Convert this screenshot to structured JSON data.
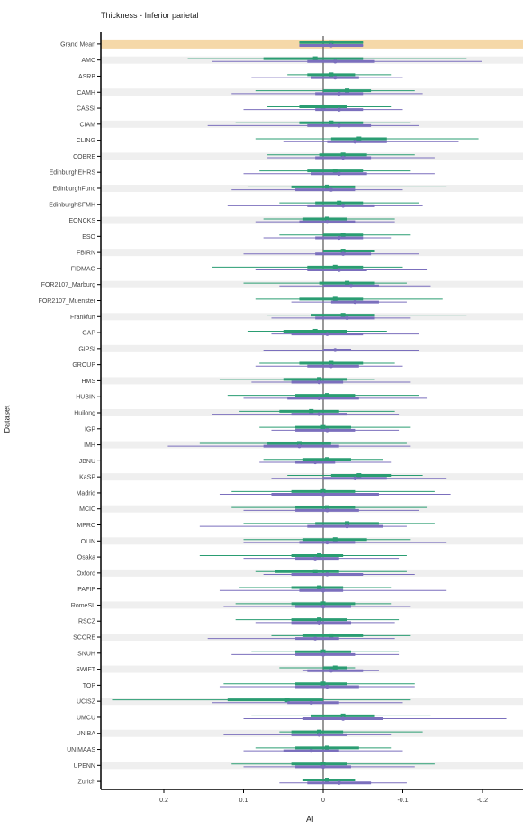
{
  "chart_data": {
    "type": "forest",
    "title": "Thickness - Inferior parietal",
    "xlabel": "AI",
    "ylabel": "Dataset",
    "x_reversed": true,
    "xlim": [
      -0.26,
      0.27
    ],
    "xticks": [
      {
        "value": 0.2,
        "label": "0.2"
      },
      {
        "value": 0.1,
        "label": "0.1"
      },
      {
        "value": 0.0,
        "label": "0"
      },
      {
        "value": -0.1,
        "label": "-0.1"
      },
      {
        "value": -0.2,
        "label": "-0.2"
      }
    ],
    "colors": {
      "series_a": "#2a9d72",
      "series_b": "#7b6fbd",
      "highlight": "#f5d8a8",
      "band": "#efefef"
    },
    "categories": [
      "Grand Mean",
      "AMC",
      "ASRB",
      "CAMH",
      "CASSI",
      "CIAM",
      "CLING",
      "COBRE",
      "EdinburghEHRS",
      "EdinburghFunc",
      "EdinburghSFMH",
      "EONCKS",
      "ESO",
      "FBIRN",
      "FIDMAG",
      "FOR2107_Marburg",
      "FOR2107_Muenster",
      "Frankfurt",
      "GAP",
      "GIPSI",
      "GROUP",
      "HMS",
      "HUBIN",
      "Huilong",
      "IGP",
      "IMH",
      "JBNU",
      "KaSP",
      "Madrid",
      "MCIC",
      "MPRC",
      "OLIN",
      "Osaka",
      "Oxford",
      "PAFIP",
      "RomeSL",
      "RSCZ",
      "SCORE",
      "SNUH",
      "SWIFT",
      "TOP",
      "UCISZ",
      "UMCU",
      "UNIBA",
      "UNIMAAS",
      "UPENN",
      "Zurich"
    ],
    "series": [
      {
        "estimate": [
          -0.01,
          0.01,
          -0.01,
          -0.03,
          0.0,
          -0.01,
          -0.045,
          -0.025,
          -0.015,
          -0.005,
          -0.02,
          -0.005,
          -0.025,
          -0.025,
          -0.015,
          -0.03,
          -0.015,
          -0.025,
          0.01,
          null,
          -0.01,
          0.005,
          -0.005,
          0.015,
          0.0,
          0.03,
          -0.005,
          -0.045,
          0.0,
          -0.005,
          -0.03,
          -0.015,
          0.005,
          0.01,
          0.005,
          0.0,
          0.005,
          -0.01,
          0.0,
          -0.015,
          0.0,
          0.045,
          -0.025,
          0.005,
          -0.005,
          0.0,
          -0.005
        ],
        "ci_inner": [
          [
            -0.05,
            0.03
          ],
          [
            -0.05,
            0.075
          ],
          [
            -0.04,
            0.02
          ],
          [
            -0.06,
            0.0
          ],
          [
            -0.03,
            0.03
          ],
          [
            -0.05,
            0.03
          ],
          [
            -0.08,
            -0.01
          ],
          [
            -0.055,
            0.005
          ],
          [
            -0.05,
            0.02
          ],
          [
            -0.04,
            0.04
          ],
          [
            -0.05,
            0.01
          ],
          [
            -0.03,
            0.025
          ],
          [
            -0.05,
            0.0
          ],
          [
            -0.065,
            0.0
          ],
          [
            -0.05,
            0.02
          ],
          [
            -0.065,
            0.005
          ],
          [
            -0.05,
            0.03
          ],
          [
            -0.065,
            0.015
          ],
          [
            -0.03,
            0.05
          ],
          null,
          [
            -0.05,
            0.03
          ],
          [
            -0.03,
            0.05
          ],
          [
            -0.04,
            0.035
          ],
          [
            -0.02,
            0.055
          ],
          [
            -0.035,
            0.035
          ],
          [
            -0.01,
            0.07
          ],
          [
            -0.035,
            0.025
          ],
          [
            -0.085,
            -0.01
          ],
          [
            -0.04,
            0.04
          ],
          [
            -0.04,
            0.035
          ],
          [
            -0.07,
            0.01
          ],
          [
            -0.055,
            0.025
          ],
          [
            -0.025,
            0.04
          ],
          [
            -0.02,
            0.06
          ],
          [
            -0.025,
            0.04
          ],
          [
            -0.04,
            0.04
          ],
          [
            -0.03,
            0.04
          ],
          [
            -0.05,
            0.025
          ],
          [
            -0.035,
            0.035
          ],
          [
            -0.03,
            0.0
          ],
          [
            -0.03,
            0.035
          ],
          [
            0.0,
            0.12
          ],
          [
            -0.065,
            0.015
          ],
          [
            -0.025,
            0.04
          ],
          [
            -0.045,
            0.035
          ],
          [
            -0.03,
            0.04
          ],
          [
            -0.04,
            0.025
          ]
        ],
        "ci_outer": [
          [
            -0.05,
            0.03
          ],
          [
            -0.18,
            0.17
          ],
          [
            -0.085,
            0.045
          ],
          [
            -0.115,
            0.085
          ],
          [
            -0.085,
            0.07
          ],
          [
            -0.11,
            0.11
          ],
          [
            -0.195,
            0.085
          ],
          [
            -0.115,
            0.07
          ],
          [
            -0.11,
            0.08
          ],
          [
            -0.155,
            0.095
          ],
          [
            -0.12,
            0.055
          ],
          [
            -0.09,
            0.075
          ],
          [
            -0.11,
            0.055
          ],
          [
            -0.115,
            0.1
          ],
          [
            -0.1,
            0.14
          ],
          [
            -0.105,
            0.1
          ],
          [
            -0.15,
            0.085
          ],
          [
            -0.18,
            0.07
          ],
          [
            -0.08,
            0.095
          ],
          null,
          [
            -0.09,
            0.08
          ],
          [
            -0.065,
            0.13
          ],
          [
            -0.12,
            0.12
          ],
          [
            -0.09,
            0.105
          ],
          [
            -0.11,
            0.08
          ],
          [
            -0.105,
            0.155
          ],
          [
            -0.075,
            0.075
          ],
          [
            -0.125,
            0.045
          ],
          [
            -0.14,
            0.115
          ],
          [
            -0.13,
            0.115
          ],
          [
            -0.14,
            0.1
          ],
          [
            -0.11,
            0.1
          ],
          [
            -0.105,
            0.155
          ],
          [
            -0.105,
            0.085
          ],
          [
            -0.085,
            0.105
          ],
          [
            -0.085,
            0.11
          ],
          [
            -0.095,
            0.11
          ],
          [
            -0.11,
            0.065
          ],
          [
            -0.095,
            0.09
          ],
          [
            -0.04,
            0.055
          ],
          [
            -0.115,
            0.125
          ],
          [
            -0.11,
            0.265
          ],
          [
            -0.135,
            0.09
          ],
          [
            -0.125,
            0.055
          ],
          [
            -0.085,
            0.085
          ],
          [
            -0.14,
            0.115
          ],
          [
            -0.085,
            0.085
          ]
        ]
      },
      {
        "estimate": [
          -0.01,
          -0.015,
          -0.015,
          -0.02,
          -0.02,
          -0.02,
          -0.04,
          -0.025,
          -0.02,
          -0.01,
          -0.025,
          -0.005,
          -0.02,
          -0.025,
          -0.02,
          -0.035,
          -0.04,
          -0.03,
          -0.005,
          -0.015,
          -0.01,
          0.005,
          0.005,
          0.005,
          -0.005,
          0.03,
          0.01,
          -0.04,
          0.0,
          -0.005,
          -0.03,
          -0.005,
          0.01,
          -0.005,
          0.0,
          0.0,
          0.005,
          0.01,
          0.0,
          -0.01,
          -0.005,
          0.015,
          -0.025,
          0.005,
          0.015,
          0.0,
          -0.02
        ],
        "ci_inner": [
          [
            -0.05,
            0.03
          ],
          [
            -0.065,
            0.02
          ],
          [
            -0.045,
            0.015
          ],
          [
            -0.05,
            0.01
          ],
          [
            -0.05,
            0.01
          ],
          [
            -0.06,
            0.02
          ],
          [
            -0.08,
            -0.005
          ],
          [
            -0.06,
            0.01
          ],
          [
            -0.055,
            0.015
          ],
          [
            -0.04,
            0.035
          ],
          [
            -0.065,
            0.02
          ],
          [
            -0.04,
            0.03
          ],
          [
            -0.05,
            0.01
          ],
          [
            -0.06,
            0.01
          ],
          [
            -0.055,
            0.02
          ],
          [
            -0.07,
            0.0
          ],
          [
            -0.07,
            -0.01
          ],
          [
            -0.065,
            0.01
          ],
          [
            -0.05,
            0.04
          ],
          [
            -0.035,
            0.0
          ],
          [
            -0.045,
            0.02
          ],
          [
            -0.025,
            0.04
          ],
          [
            -0.045,
            0.045
          ],
          [
            -0.03,
            0.04
          ],
          [
            -0.04,
            0.035
          ],
          [
            -0.02,
            0.075
          ],
          [
            -0.015,
            0.035
          ],
          [
            -0.08,
            0.0
          ],
          [
            -0.07,
            0.065
          ],
          [
            -0.045,
            0.035
          ],
          [
            -0.075,
            0.02
          ],
          [
            -0.04,
            0.03
          ],
          [
            -0.02,
            0.035
          ],
          [
            -0.05,
            0.04
          ],
          [
            -0.025,
            0.03
          ],
          [
            -0.035,
            0.035
          ],
          [
            -0.035,
            0.04
          ],
          [
            -0.02,
            0.035
          ],
          [
            -0.04,
            0.035
          ],
          [
            -0.05,
            0.02
          ],
          [
            -0.045,
            0.035
          ],
          [
            -0.02,
            0.045
          ],
          [
            -0.075,
            0.025
          ],
          [
            -0.03,
            0.04
          ],
          [
            -0.02,
            0.05
          ],
          [
            -0.035,
            0.035
          ],
          [
            -0.06,
            0.02
          ]
        ],
        "ci_outer": [
          [
            -0.05,
            0.03
          ],
          [
            -0.2,
            0.14
          ],
          [
            -0.1,
            0.09
          ],
          [
            -0.125,
            0.115
          ],
          [
            -0.1,
            0.1
          ],
          [
            -0.12,
            0.145
          ],
          [
            -0.17,
            0.05
          ],
          [
            -0.14,
            0.07
          ],
          [
            -0.14,
            0.1
          ],
          [
            -0.1,
            0.115
          ],
          [
            -0.125,
            0.12
          ],
          [
            -0.09,
            0.085
          ],
          [
            -0.085,
            0.075
          ],
          [
            -0.12,
            0.1
          ],
          [
            -0.13,
            0.085
          ],
          [
            -0.135,
            0.055
          ],
          [
            -0.105,
            0.04
          ],
          [
            -0.11,
            0.065
          ],
          [
            -0.12,
            0.065
          ],
          [
            -0.12,
            0.075
          ],
          [
            -0.1,
            0.085
          ],
          [
            -0.11,
            0.09
          ],
          [
            -0.13,
            0.1
          ],
          [
            -0.095,
            0.14
          ],
          [
            -0.095,
            0.065
          ],
          [
            -0.11,
            0.195
          ],
          [
            -0.085,
            0.08
          ],
          [
            -0.155,
            0.065
          ],
          [
            -0.16,
            0.13
          ],
          [
            -0.12,
            0.1
          ],
          [
            -0.105,
            0.155
          ],
          [
            -0.155,
            0.1
          ],
          [
            -0.095,
            0.1
          ],
          [
            -0.115,
            0.075
          ],
          [
            -0.155,
            0.13
          ],
          [
            -0.11,
            0.125
          ],
          [
            -0.09,
            0.085
          ],
          [
            -0.09,
            0.145
          ],
          [
            -0.095,
            0.115
          ],
          [
            -0.07,
            0.025
          ],
          [
            -0.115,
            0.13
          ],
          [
            -0.1,
            0.14
          ],
          [
            -0.23,
            0.1
          ],
          [
            -0.085,
            0.125
          ],
          [
            -0.1,
            0.1
          ],
          [
            -0.115,
            0.1
          ],
          [
            -0.105,
            0.055
          ]
        ]
      }
    ]
  }
}
